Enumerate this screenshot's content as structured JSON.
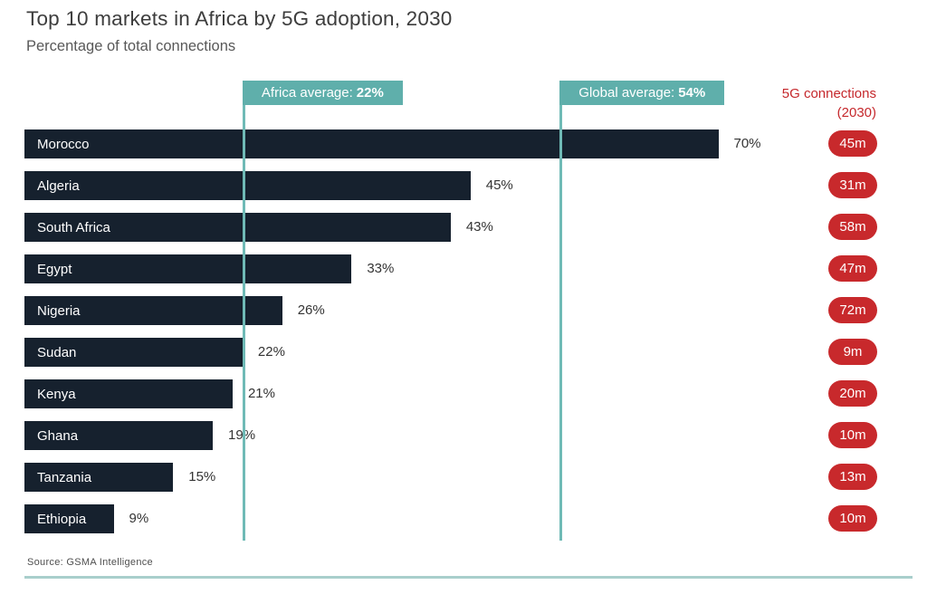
{
  "header": {
    "title": "Top 10 markets in Africa by 5G adoption, 2030",
    "subtitle": "Percentage of total connections"
  },
  "annotations": {
    "africa_average": {
      "label": "Africa average:",
      "value": "22%",
      "percent": 22
    },
    "global_average": {
      "label": "Global average:",
      "value": "54%",
      "percent": 54
    },
    "connections_header_line1": "5G connections",
    "connections_header_line2": "(2030)"
  },
  "chart_data": {
    "type": "bar",
    "orientation": "horizontal",
    "title": "Top 10 markets in Africa by 5G adoption, 2030",
    "subtitle": "Percentage of total connections",
    "xlabel": "",
    "ylabel": "",
    "xlim": [
      0,
      70
    ],
    "grid": false,
    "legend_position": "none",
    "categories": [
      "Morocco",
      "Algeria",
      "South Africa",
      "Egypt",
      "Nigeria",
      "Sudan",
      "Kenya",
      "Ghana",
      "Tanzania",
      "Ethiopia"
    ],
    "series": [
      {
        "name": "Percentage of total connections",
        "values": [
          70,
          45,
          43,
          33,
          26,
          22,
          21,
          19,
          15,
          9
        ],
        "value_labels": [
          "70%",
          "45%",
          "43%",
          "33%",
          "26%",
          "22%",
          "21%",
          "19%",
          "15%",
          "9%"
        ]
      },
      {
        "name": "5G connections (2030)",
        "value_labels": [
          "45m",
          "31m",
          "58m",
          "47m",
          "72m",
          "9m",
          "20m",
          "10m",
          "13m",
          "10m"
        ]
      }
    ],
    "reference_lines": [
      {
        "label": "Africa average: 22%",
        "value": 22
      },
      {
        "label": "Global average: 54%",
        "value": 54
      }
    ]
  },
  "source": "Source: GSMA Intelligence",
  "colors": {
    "bar": "#16212e",
    "callout_teal": "#5fafab",
    "reference_line_teal": "#6fbab6",
    "badge_red": "#c8292c",
    "header_red": "#c5282c",
    "title_text": "#3d3d3d",
    "subtitle_text": "#585858",
    "percent_text": "#333333",
    "bottom_rule": "#a9cfcc",
    "background": "#ffffff"
  }
}
